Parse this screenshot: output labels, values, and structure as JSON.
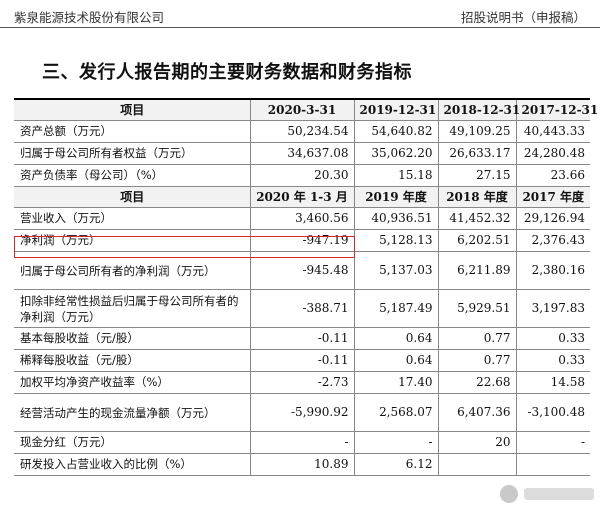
{
  "header": {
    "company": "紫泉能源技术股份有限公司",
    "doc_title": "招股说明书（申报稿）"
  },
  "section_title": "三、发行人报告期的主要财务数据和财务指标",
  "table": {
    "head1": [
      "项目",
      "2020-3-31",
      "2019-12-31",
      "2018-12-31",
      "2017-12-31"
    ],
    "rows1": [
      {
        "label": "资产总额（万元）",
        "values": [
          "50,234.54",
          "54,640.82",
          "49,109.25",
          "40,443.33"
        ]
      },
      {
        "label": "归属于母公司所有者权益（万元）",
        "values": [
          "34,637.08",
          "35,062.20",
          "26,633.17",
          "24,280.48"
        ]
      },
      {
        "label": "资产负债率（母公司）（%）",
        "values": [
          "20.30",
          "15.18",
          "27.15",
          "23.66"
        ]
      }
    ],
    "head2": [
      "项目",
      "2020 年 1-3 月",
      "2019 年度",
      "2018 年度",
      "2017 年度"
    ],
    "rows2": [
      {
        "label": "营业收入（万元）",
        "values": [
          "3,460.56",
          "40,936.51",
          "41,452.32",
          "29,126.94"
        ]
      },
      {
        "label": "净利润（万元）",
        "values": [
          "-947.19",
          "5,128.13",
          "6,202.51",
          "2,376.43"
        ]
      },
      {
        "label": "归属于母公司所有者的净利润（万元）",
        "values": [
          "-945.48",
          "5,137.03",
          "6,211.89",
          "2,380.16"
        ]
      },
      {
        "label": "扣除非经常性损益后归属于母公司所有者的净利润（万元）",
        "values": [
          "-388.71",
          "5,187.49",
          "5,929.51",
          "3,197.83"
        ]
      },
      {
        "label": "基本每股收益（元/股）",
        "values": [
          "-0.11",
          "0.64",
          "0.77",
          "0.33"
        ]
      },
      {
        "label": "稀释每股收益（元/股）",
        "values": [
          "-0.11",
          "0.64",
          "0.77",
          "0.33"
        ]
      },
      {
        "label": "加权平均净资产收益率（%）",
        "values": [
          "-2.73",
          "17.40",
          "22.68",
          "14.58"
        ]
      },
      {
        "label": "经营活动产生的现金流量净额（万元）",
        "values": [
          "-5,990.92",
          "2,568.07",
          "6,407.36",
          "-3,100.48"
        ]
      },
      {
        "label": "现金分红（万元）",
        "values": [
          "-",
          "-",
          "20",
          "-"
        ]
      },
      {
        "label": "研发投入占营业收入的比例（%）",
        "values": [
          "10.89",
          "6.12",
          "",
          ""
        ]
      }
    ]
  },
  "colors": {
    "highlight": "#d8262c"
  }
}
